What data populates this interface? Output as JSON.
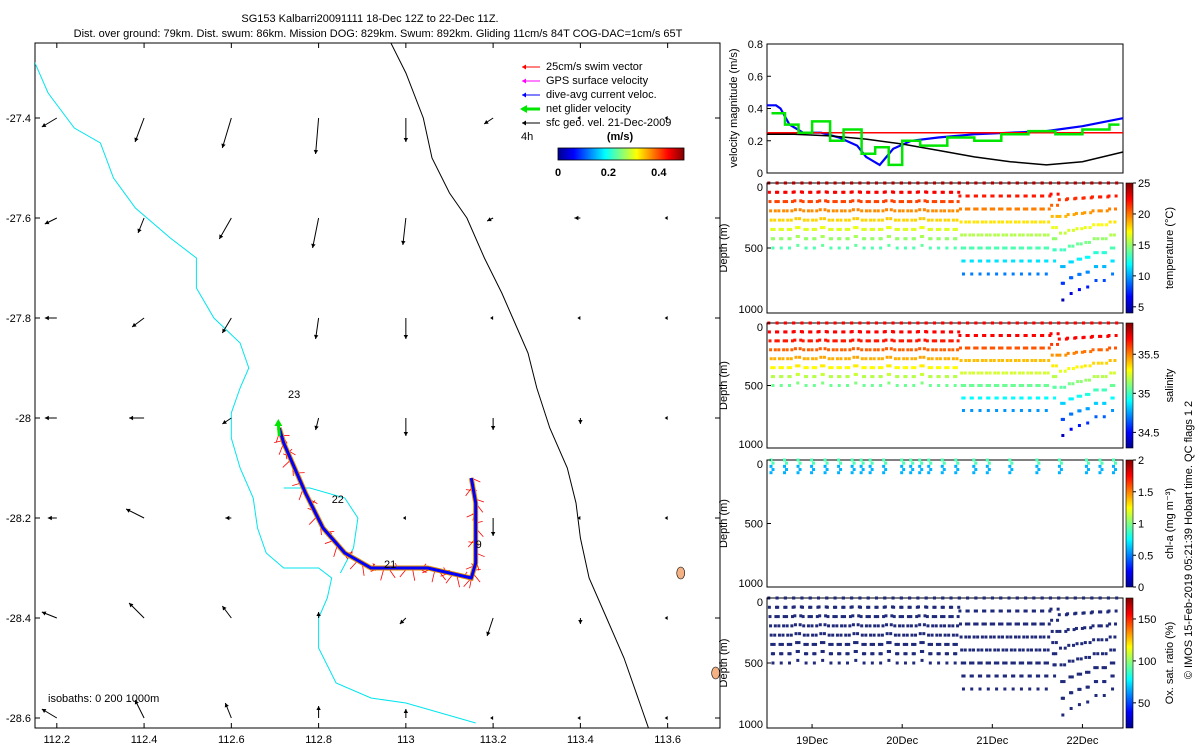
{
  "header": {
    "title": "SG153 Kalbarri20091111 18-Dec 12Z to 22-Dec 11Z.",
    "subtitle": "Dist. over ground: 79km. Dist. swum: 86km. Mission DOG: 829km. Swum: 892km. Gliding 11cm/s 84T COG-DAC=1cm/s 65T"
  },
  "footer": {
    "credit": "© IMOS 15-Feb-2019 05:21:39 Hobart time. QC flags 1  2"
  },
  "colors": {
    "coastline": "#00e5ee",
    "isobath": "#000000",
    "swim_vector": "#ff0000",
    "gps_velocity": "#ff00ff",
    "dive_avg_current": "#0000ff",
    "net_velocity": "#00e600",
    "sfc_geo_velocity": "#000000",
    "island": "#f4b183"
  },
  "chart_data": [
    {
      "type": "map",
      "xlim": [
        112.15,
        113.72
      ],
      "ylim": [
        -28.62,
        -27.25
      ],
      "x_ticks": [
        112.2,
        112.4,
        112.6,
        112.8,
        113,
        113.2,
        113.4,
        113.6
      ],
      "x_tick_labels": [
        "112.2",
        "112.4",
        "112.6",
        "112.8",
        "113",
        "113.2",
        "113.4",
        "113.6"
      ],
      "y_ticks": [
        -27.4,
        -27.6,
        -27.8,
        -28,
        -28.2,
        -28.4,
        -28.6
      ],
      "y_tick_labels": [
        "-27.4",
        "-27.6",
        "-27.8",
        "-28",
        "-28.2",
        "-28.4",
        "-28.6"
      ],
      "legend": {
        "placement": "top-right",
        "entries": [
          "25cm/s swim vector",
          "GPS surface velocity",
          "dive-avg current veloc.",
          "net glider velocity",
          "sfc geo. vel. 21-Dec-2009"
        ],
        "time_label": "4h",
        "colorbar_label": "(m/s)",
        "colorbar_ticks": [
          "0",
          "0.2",
          "0.4"
        ],
        "colorbar_range": [
          0,
          0.5
        ]
      },
      "isobath_label": "isobaths: 0   200  1000m",
      "day_labels": [
        {
          "text": "23",
          "lon": 112.73,
          "lat": -27.96
        },
        {
          "text": "22",
          "lon": 112.83,
          "lat": -28.17
        },
        {
          "text": "21",
          "lon": 112.95,
          "lat": -28.3
        },
        {
          "text": "9",
          "lon": 113.16,
          "lat": -28.26
        }
      ],
      "track": [
        [
          113.15,
          -28.12
        ],
        [
          113.16,
          -28.17
        ],
        [
          113.16,
          -28.23
        ],
        [
          113.16,
          -28.29
        ],
        [
          113.15,
          -28.32
        ],
        [
          113.1,
          -28.31
        ],
        [
          113.05,
          -28.3
        ],
        [
          112.98,
          -28.3
        ],
        [
          112.92,
          -28.3
        ],
        [
          112.86,
          -28.27
        ],
        [
          112.81,
          -28.22
        ],
        [
          112.77,
          -28.15
        ],
        [
          112.74,
          -28.09
        ],
        [
          112.72,
          -28.05
        ],
        [
          112.71,
          -28.02
        ]
      ],
      "isobath_200": [
        [
          112.145,
          -27.28
        ],
        [
          112.18,
          -27.35
        ],
        [
          112.24,
          -27.42
        ],
        [
          112.3,
          -27.45
        ],
        [
          112.33,
          -27.52
        ],
        [
          112.38,
          -27.58
        ],
        [
          112.46,
          -27.64
        ],
        [
          112.52,
          -27.68
        ],
        [
          112.52,
          -27.74
        ],
        [
          112.56,
          -27.8
        ],
        [
          112.62,
          -27.85
        ],
        [
          112.64,
          -27.9
        ],
        [
          112.62,
          -27.94
        ],
        [
          112.6,
          -27.99
        ],
        [
          112.6,
          -28.04
        ],
        [
          112.62,
          -28.1
        ],
        [
          112.65,
          -28.16
        ],
        [
          112.66,
          -28.22
        ],
        [
          112.68,
          -28.27
        ],
        [
          112.72,
          -28.3
        ],
        [
          112.8,
          -28.3
        ],
        [
          112.83,
          -28.32
        ],
        [
          112.82,
          -28.36
        ],
        [
          112.8,
          -28.4
        ],
        [
          112.8,
          -28.46
        ],
        [
          112.84,
          -28.53
        ],
        [
          112.92,
          -28.56
        ],
        [
          113.0,
          -28.57
        ],
        [
          113.08,
          -28.59
        ],
        [
          113.16,
          -28.61
        ]
      ],
      "isobath_inner": [
        [
          112.72,
          -28.14
        ],
        [
          112.78,
          -28.14
        ],
        [
          112.86,
          -28.16
        ],
        [
          112.89,
          -28.2
        ],
        [
          112.88,
          -28.26
        ],
        [
          112.85,
          -28.31
        ]
      ],
      "isobath_1000": [
        [
          112.96,
          -27.24
        ],
        [
          113.0,
          -27.31
        ],
        [
          113.04,
          -27.4
        ],
        [
          113.06,
          -27.48
        ],
        [
          113.1,
          -27.55
        ],
        [
          113.14,
          -27.6
        ],
        [
          113.18,
          -27.68
        ],
        [
          113.22,
          -27.75
        ],
        [
          113.25,
          -27.81
        ],
        [
          113.28,
          -27.87
        ],
        [
          113.3,
          -27.94
        ],
        [
          113.33,
          -28.02
        ],
        [
          113.37,
          -28.1
        ],
        [
          113.39,
          -28.17
        ],
        [
          113.4,
          -28.24
        ],
        [
          113.42,
          -28.32
        ],
        [
          113.46,
          -28.4
        ],
        [
          113.5,
          -28.48
        ],
        [
          113.54,
          -28.58
        ],
        [
          113.56,
          -28.63
        ]
      ],
      "vectors": [
        [
          112.2,
          -27.4,
          0.05,
          0.03
        ],
        [
          112.4,
          -27.4,
          0.03,
          0.08
        ],
        [
          112.6,
          -27.4,
          0.03,
          0.1
        ],
        [
          112.8,
          -27.4,
          0.01,
          0.12
        ],
        [
          113.0,
          -27.4,
          0.0,
          0.08
        ],
        [
          113.2,
          -27.4,
          0.03,
          0.02
        ],
        [
          113.4,
          -27.4,
          0.0,
          0.0
        ],
        [
          113.6,
          -27.4,
          0.0,
          0.0
        ],
        [
          112.2,
          -27.6,
          0.04,
          0.02
        ],
        [
          112.4,
          -27.6,
          0.02,
          0.05
        ],
        [
          112.6,
          -27.6,
          0.04,
          0.07
        ],
        [
          112.8,
          -27.6,
          0.02,
          0.1
        ],
        [
          113.0,
          -27.6,
          0.01,
          0.09
        ],
        [
          113.2,
          -27.6,
          0.02,
          0.01
        ],
        [
          113.4,
          -27.6,
          0.02,
          0.0
        ],
        [
          113.6,
          -27.6,
          0.0,
          0.0
        ],
        [
          112.2,
          -27.8,
          0.04,
          0.0
        ],
        [
          112.4,
          -27.8,
          0.04,
          0.03
        ],
        [
          112.6,
          -27.8,
          0.03,
          0.05
        ],
        [
          112.8,
          -27.8,
          0.01,
          0.07
        ],
        [
          113.0,
          -27.8,
          0.0,
          0.07
        ],
        [
          113.2,
          -27.8,
          0.0,
          0.0
        ],
        [
          113.4,
          -27.8,
          0.0,
          0.0
        ],
        [
          113.6,
          -27.8,
          0.0,
          0.0
        ],
        [
          112.2,
          -28.0,
          0.04,
          0.0
        ],
        [
          112.4,
          -28.0,
          0.05,
          0.0
        ],
        [
          112.6,
          -28.0,
          0.03,
          0.02
        ],
        [
          112.8,
          -28.0,
          0.01,
          0.04
        ],
        [
          113.0,
          -28.0,
          0.0,
          0.06
        ],
        [
          113.2,
          -28.0,
          0.0,
          0.04
        ],
        [
          113.4,
          -28.0,
          0.0,
          0.02
        ],
        [
          113.6,
          -28.0,
          0.0,
          0.0
        ],
        [
          112.2,
          -28.2,
          0.03,
          0.0
        ],
        [
          112.4,
          -28.2,
          0.06,
          -0.03
        ],
        [
          112.6,
          -28.2,
          0.02,
          0.0
        ],
        [
          112.8,
          -28.2,
          0.0,
          0.0
        ],
        [
          113.0,
          -28.2,
          0.0,
          0.0
        ],
        [
          113.2,
          -28.2,
          0.0,
          0.06
        ],
        [
          113.4,
          -28.2,
          0.0,
          0.0
        ],
        [
          113.6,
          -28.2,
          0.0,
          0.0
        ],
        [
          112.2,
          -28.4,
          0.05,
          -0.02
        ],
        [
          112.4,
          -28.4,
          0.05,
          -0.05
        ],
        [
          112.6,
          -28.4,
          0.03,
          -0.04
        ],
        [
          112.8,
          -28.4,
          0.0,
          -0.02
        ],
        [
          113.0,
          -28.4,
          0.02,
          0.02
        ],
        [
          113.2,
          -28.4,
          0.02,
          0.06
        ],
        [
          113.4,
          -28.4,
          0.0,
          0.02
        ],
        [
          113.6,
          -28.4,
          0.0,
          0.0
        ],
        [
          112.2,
          -28.6,
          0.05,
          -0.03
        ],
        [
          112.4,
          -28.6,
          0.03,
          -0.06
        ],
        [
          112.6,
          -28.6,
          0.02,
          -0.05
        ],
        [
          112.8,
          -28.6,
          0.0,
          -0.04
        ],
        [
          113.0,
          -28.6,
          0.0,
          -0.03
        ],
        [
          113.2,
          -28.6,
          0.0,
          0.0
        ],
        [
          113.4,
          -28.6,
          0.0,
          0.0
        ],
        [
          113.6,
          -28.6,
          0.0,
          0.0
        ]
      ],
      "islands": [
        [
          113.63,
          -28.31
        ],
        [
          113.71,
          -28.51
        ]
      ]
    },
    {
      "type": "line",
      "ylabel": "velocity magnitude (m/s)",
      "ylim": [
        0,
        0.8
      ],
      "y_ticks": [
        0,
        0.2,
        0.4,
        0.6,
        0.8
      ],
      "xlim": [
        18.5,
        22.45
      ],
      "series": [
        {
          "color": "#0000ff",
          "x": [
            18.5,
            18.6,
            18.65,
            18.75,
            18.9,
            19.1,
            19.3,
            19.5,
            19.6,
            19.75,
            19.9,
            20.1,
            20.4,
            20.8,
            21.2,
            21.6,
            22.0,
            22.45
          ],
          "values": [
            0.42,
            0.42,
            0.4,
            0.3,
            0.25,
            0.25,
            0.22,
            0.17,
            0.1,
            0.05,
            0.15,
            0.2,
            0.22,
            0.24,
            0.25,
            0.26,
            0.29,
            0.34
          ]
        },
        {
          "color": "#ff0000",
          "x": [
            18.5,
            22.45
          ],
          "values": [
            0.25,
            0.25
          ]
        },
        {
          "color": "#000000",
          "x": [
            18.5,
            18.8,
            19.2,
            19.6,
            20.0,
            20.4,
            20.8,
            21.2,
            21.6,
            22.0,
            22.45
          ],
          "values": [
            0.24,
            0.24,
            0.23,
            0.21,
            0.18,
            0.14,
            0.1,
            0.07,
            0.05,
            0.07,
            0.13
          ]
        },
        {
          "color": "#00e600",
          "x": [
            18.55,
            18.7,
            18.85,
            19.0,
            19.2,
            19.35,
            19.55,
            19.7,
            19.85,
            20.0,
            20.2,
            20.5,
            20.8,
            21.1,
            21.4,
            21.7,
            22.0,
            22.3
          ],
          "values": [
            0.37,
            0.3,
            0.25,
            0.32,
            0.2,
            0.27,
            0.12,
            0.16,
            0.05,
            0.2,
            0.17,
            0.22,
            0.2,
            0.24,
            0.26,
            0.24,
            0.27,
            0.3
          ]
        }
      ]
    },
    {
      "type": "scatter",
      "ylabel": "Depth (m)",
      "yreverse": true,
      "ylim": [
        0,
        1000
      ],
      "y_ticks": [
        0,
        500,
        1000
      ],
      "colorbar_label": "temperature (°C)",
      "colorbar_ticks": [
        "5",
        "10",
        "15",
        "20",
        "25"
      ],
      "colorbar_range": [
        4,
        25
      ]
    },
    {
      "type": "scatter",
      "ylabel": "Depth (m)",
      "yreverse": true,
      "ylim": [
        0,
        1000
      ],
      "y_ticks": [
        0,
        500,
        1000
      ],
      "colorbar_label": "salinity",
      "colorbar_ticks": [
        "34.5",
        "35",
        "35.5"
      ],
      "colorbar_range": [
        34.3,
        35.9
      ]
    },
    {
      "type": "scatter",
      "ylabel": "Depth (m)",
      "yreverse": true,
      "ylim": [
        0,
        1000
      ],
      "y_ticks": [
        0,
        500,
        1000
      ],
      "colorbar_label": "chl-a (mg m⁻³)",
      "colorbar_ticks": [
        "0",
        "0.5",
        "1",
        "1.5",
        "2"
      ],
      "colorbar_range": [
        0,
        2
      ]
    },
    {
      "type": "scatter",
      "ylabel": "Depth (m)",
      "yreverse": true,
      "ylim": [
        0,
        1000
      ],
      "y_ticks": [
        0,
        500,
        1000
      ],
      "colorbar_label": "Ox. sat. ratio (%)",
      "colorbar_ticks": [
        "50",
        "100",
        "150"
      ],
      "colorbar_range": [
        20,
        175
      ],
      "x_tick_labels": [
        "19Dec",
        "20Dec",
        "21Dec",
        "22Dec"
      ],
      "x_ticks": [
        19,
        20,
        21,
        22
      ]
    }
  ],
  "dives": {
    "start_day": 18.52,
    "end_day": 22.38,
    "count": 42,
    "max_depth": [
      500,
      500,
      500,
      480,
      500,
      500,
      480,
      500,
      500,
      500,
      480,
      500,
      500,
      500,
      480,
      500,
      500,
      500,
      480,
      500,
      500,
      500,
      500,
      700,
      700,
      700,
      700,
      700,
      700,
      700,
      700,
      700,
      700,
      700,
      600,
      900,
      850,
      820,
      800,
      750,
      750,
      700
    ],
    "chl_dive_days": [
      18.55,
      18.7,
      18.85,
      19.0,
      19.15,
      19.3,
      19.45,
      19.55,
      19.65,
      19.8,
      20.0,
      20.1,
      20.2,
      20.3,
      20.45,
      20.6,
      20.8,
      20.95,
      21.2,
      21.5,
      21.75,
      22.05,
      22.2,
      22.35
    ]
  }
}
